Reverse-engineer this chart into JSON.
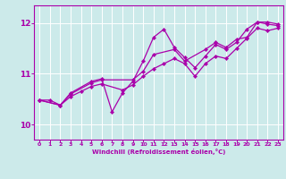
{
  "xlabel": "Windchill (Refroidissement éolien,°C)",
  "xlim": [
    -0.5,
    23.5
  ],
  "ylim": [
    9.7,
    12.35
  ],
  "yticks": [
    10,
    11,
    12
  ],
  "xticks": [
    0,
    1,
    2,
    3,
    4,
    5,
    6,
    7,
    8,
    9,
    10,
    11,
    12,
    13,
    14,
    15,
    16,
    17,
    18,
    19,
    20,
    21,
    22,
    23
  ],
  "bg_color": "#cceaea",
  "line_color": "#aa00aa",
  "series": [
    {
      "x": [
        0,
        1,
        2,
        3,
        4,
        5,
        6,
        8,
        9,
        10,
        11,
        12,
        13,
        14,
        15,
        16,
        17,
        18,
        19,
        20,
        21,
        22,
        23
      ],
      "y": [
        10.48,
        10.48,
        10.38,
        10.55,
        10.65,
        10.75,
        10.8,
        10.68,
        10.78,
        10.95,
        11.1,
        11.2,
        11.3,
        11.2,
        10.95,
        11.2,
        11.35,
        11.3,
        11.5,
        11.7,
        11.9,
        11.85,
        11.9
      ]
    },
    {
      "x": [
        0,
        2,
        3,
        5,
        6,
        9,
        10,
        11,
        13,
        14,
        16,
        17,
        18,
        19,
        20,
        21,
        22,
        23
      ],
      "y": [
        10.48,
        10.38,
        10.6,
        10.82,
        10.88,
        10.88,
        11.05,
        11.38,
        11.48,
        11.25,
        11.48,
        11.62,
        11.52,
        11.68,
        11.72,
        12.02,
        12.02,
        11.98
      ]
    },
    {
      "x": [
        0,
        2,
        3,
        5,
        6,
        7,
        8,
        9,
        10,
        11,
        12,
        13,
        14,
        15,
        16,
        17,
        18,
        19,
        20,
        21,
        22,
        23
      ],
      "y": [
        10.48,
        10.38,
        10.62,
        10.85,
        10.9,
        10.25,
        10.62,
        10.85,
        11.25,
        11.72,
        11.88,
        11.52,
        11.32,
        11.12,
        11.35,
        11.58,
        11.48,
        11.62,
        11.88,
        12.02,
        11.98,
        11.95
      ]
    }
  ]
}
